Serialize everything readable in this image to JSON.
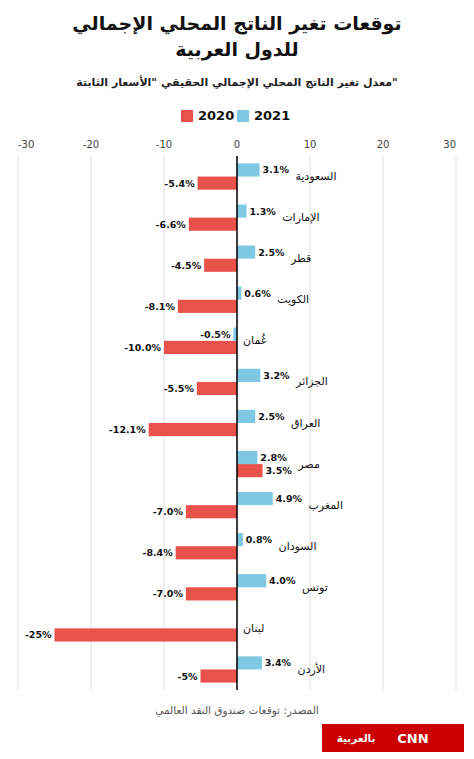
{
  "chart_data": {
    "type": "bar",
    "orientation": "horizontal",
    "title": "توقعات تغير الناتج المحلي الإجمالي\nللدول العربية",
    "subtitle": "معدل تغير الناتج المحلي الإجمالي الحقيقي \"الأسعار الثابتة\"",
    "annotations": [
      "المصدر: توقعات صندوق النقد العالمي",
      "CNN",
      "بالعربية"
    ],
    "categories": [
      "السعودية",
      "الإمارات",
      "قطر",
      "الكويت",
      "غُمان",
      "الجزائر",
      "العراق",
      "مصر",
      "المغرب",
      "السودان",
      "تونس",
      "لبنان",
      "الأردن"
    ],
    "series": [
      {
        "name": "2020",
        "color": "#e8524a",
        "values": [
          -5.4,
          -6.6,
          -4.5,
          -8.1,
          -10.0,
          -5.5,
          -12.1,
          3.5,
          -7.0,
          -8.4,
          -7.0,
          -25.0,
          -5.0
        ],
        "value_labels": [
          "-5.4%",
          "-6.6%",
          "-4.5%",
          "-8.1%",
          "-10.0%",
          "-5.5%",
          "-12.1%",
          "3.5%",
          "-7.0%",
          "-8.4%",
          "-7.0%",
          "-25%",
          "-5%"
        ]
      },
      {
        "name": "2021",
        "color": "#7ec8e3",
        "values": [
          3.1,
          1.3,
          2.5,
          0.6,
          -0.5,
          3.2,
          2.5,
          2.8,
          4.9,
          0.8,
          4.0,
          0.0,
          3.4
        ],
        "value_labels": [
          "3.1%",
          "1.3%",
          "2.5%",
          "0.6%",
          "-0.5%",
          "3.2%",
          "2.5%",
          "2.8%",
          "4.9%",
          "0.8%",
          "4.0%",
          null,
          "3.4%"
        ]
      }
    ],
    "xlim": [
      -30,
      30
    ],
    "xticks": [
      -30,
      -20,
      -10,
      0,
      10,
      20,
      30
    ],
    "grid": true,
    "legend": "top",
    "data_labels": true
  }
}
